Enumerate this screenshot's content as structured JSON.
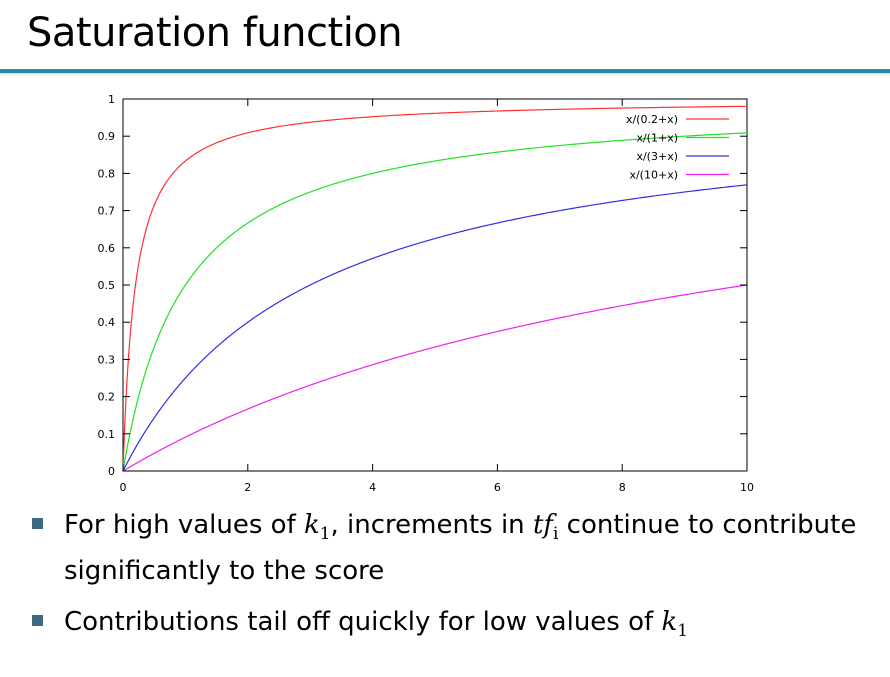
{
  "slide": {
    "title": "Saturation function",
    "accent_color": "#2e89a5",
    "bullet_color": "#3d6a80"
  },
  "chart_data": {
    "type": "line",
    "title": "",
    "xlabel": "",
    "ylabel": "",
    "xlim": [
      0,
      10
    ],
    "ylim": [
      0,
      1
    ],
    "x_ticks": [
      "0",
      "2",
      "4",
      "6",
      "8",
      "10"
    ],
    "y_ticks": [
      "0",
      "0.1",
      "0.2",
      "0.3",
      "0.4",
      "0.5",
      "0.6",
      "0.7",
      "0.8",
      "0.9",
      "1"
    ],
    "legend_position": "top-right",
    "grid": false,
    "series": [
      {
        "name": "x/(0.2+x)",
        "k": 0.2,
        "color": "#ff3030"
      },
      {
        "name": "x/(1+x)",
        "k": 1,
        "color": "#22e022"
      },
      {
        "name": "x/(3+x)",
        "k": 3,
        "color": "#3030e0"
      },
      {
        "name": "x/(10+x)",
        "k": 10,
        "color": "#f020f0"
      }
    ]
  },
  "bullets": [
    {
      "part1": "For high values of ",
      "k": "k",
      "k_sub": "1",
      "part2": ", increments in ",
      "tf": "tf",
      "tf_sub": "i",
      "part3": " continue to contribute significantly to the score"
    },
    {
      "part1": "Contributions tail off quickly for low values of ",
      "k": "k",
      "k_sub": "1"
    }
  ]
}
